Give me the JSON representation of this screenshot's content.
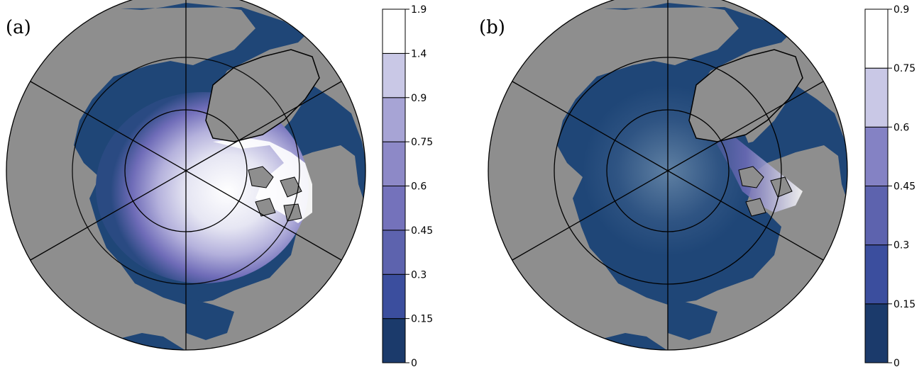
{
  "panels": [
    {
      "label": "(a)",
      "colorbar": {
        "ticks": [
          "0",
          "0.15",
          "0.3",
          "0.45",
          "0.6",
          "0.75",
          "0.9",
          "1.4",
          "1.9"
        ],
        "colors": [
          "#1b3a6b",
          "#3b4e9e",
          "#5d63ae",
          "#7472bb",
          "#8d89c7",
          "#a7a4d5",
          "#c9c8e6",
          "#ffffff"
        ]
      }
    },
    {
      "label": "(b)",
      "colorbar": {
        "ticks": [
          "0",
          "0.15",
          "0.3",
          "0.45",
          "0.6",
          "0.75",
          "0.9"
        ],
        "colors": [
          "#1b3a6b",
          "#3b4e9e",
          "#5d63ae",
          "#8482c4",
          "#c9c8e6",
          "#ffffff"
        ]
      }
    }
  ],
  "colors": {
    "ocean_low": "#1f4677",
    "land": "#8e8e8e",
    "outline": "#000000"
  }
}
